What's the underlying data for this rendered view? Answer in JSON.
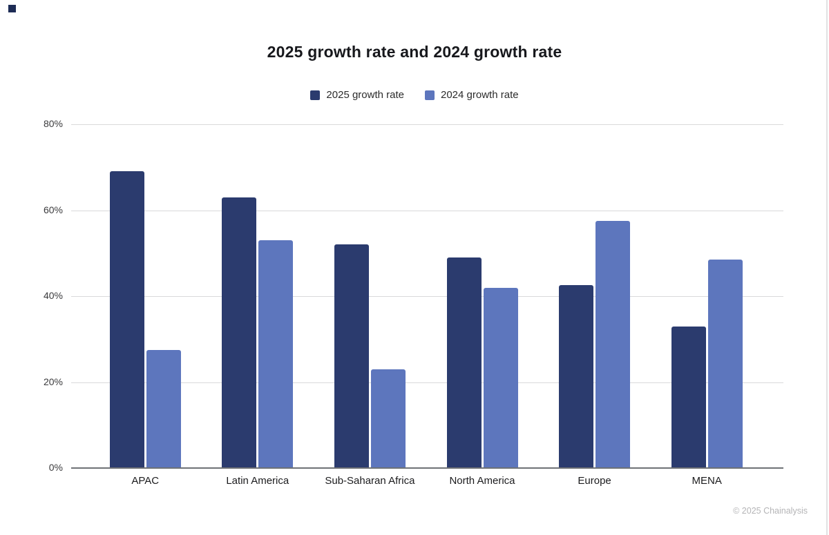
{
  "title": "2025 growth rate and 2024 growth rate",
  "legend": {
    "items": [
      {
        "label": "2025 growth rate",
        "color": "#2b3b6e"
      },
      {
        "label": "2024 growth rate",
        "color": "#5d76bd"
      }
    ]
  },
  "footer": {
    "credit": "© 2025 Chainalysis"
  },
  "colors": {
    "series_2025": "#2b3b6e",
    "series_2024": "#5d76bd",
    "gridline": "#d9d9da",
    "axis_line": "#6e7175",
    "title_text": "#17181c",
    "tick_text": "#3a3a3c",
    "credit_text": "#b4b4b6"
  },
  "chart_data": {
    "type": "bar",
    "title": "2025 growth rate and 2024 growth rate",
    "categories": [
      "APAC",
      "Latin America",
      "Sub-Saharan Africa",
      "North America",
      "Europe",
      "MENA"
    ],
    "series": [
      {
        "name": "2025 growth rate",
        "color": "#2b3b6e",
        "values": [
          69,
          63,
          52,
          49,
          42.5,
          33
        ]
      },
      {
        "name": "2024 growth rate",
        "color": "#5d76bd",
        "values": [
          27.5,
          53,
          23,
          42,
          57.5,
          48.5
        ]
      }
    ],
    "xlabel": "",
    "ylabel": "",
    "ylim": [
      0,
      80
    ],
    "yticks": [
      {
        "value": 0,
        "label": "0%"
      },
      {
        "value": 20,
        "label": "20%"
      },
      {
        "value": 40,
        "label": "40%"
      },
      {
        "value": 60,
        "label": "60%"
      },
      {
        "value": 80,
        "label": "80%"
      }
    ],
    "grid": true,
    "legend_position": "top-center"
  }
}
